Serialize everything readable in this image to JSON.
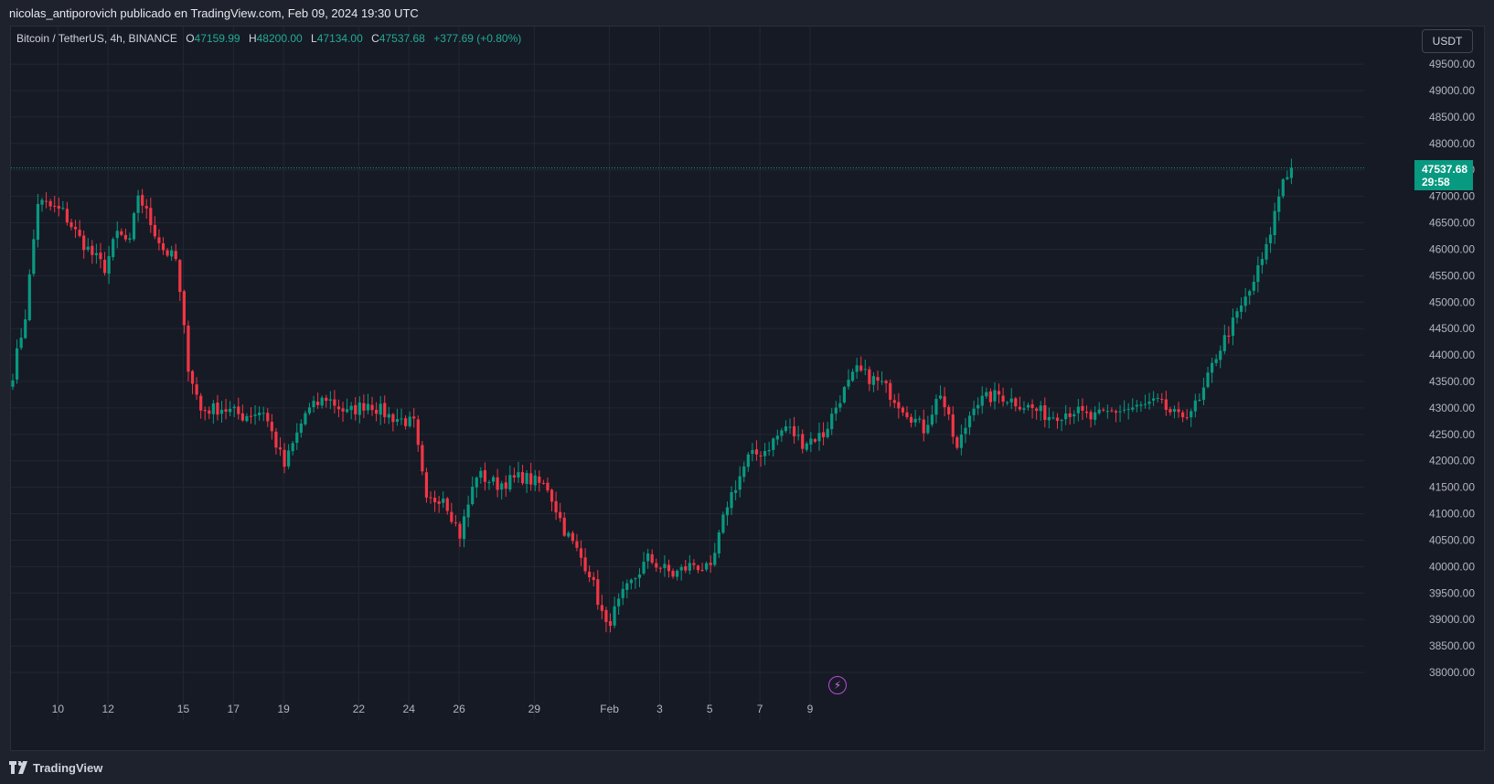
{
  "header": {
    "attribution": "nicolas_antiporovich publicado en TradingView.com, Feb 09, 2024 19:30 UTC"
  },
  "legend": {
    "symbol": "Bitcoin / TetherUS, 4h, BINANCE",
    "o_label": "O",
    "o_value": "47159.99",
    "h_label": "H",
    "h_value": "48200.00",
    "l_label": "L",
    "l_value": "47134.00",
    "c_label": "C",
    "c_value": "47537.68",
    "change": "+377.69 (+0.80%)"
  },
  "price_scale": {
    "currency": "USDT"
  },
  "last_price": {
    "price": "47537.68",
    "countdown": "29:58"
  },
  "footer": {
    "brand": "TradingView"
  },
  "colors": {
    "up": "#089981",
    "down": "#f23645",
    "background": "#161a25",
    "grid": "#232733",
    "bolt": "#b84bd6"
  },
  "icons": {
    "alert": "lightning-bolt-icon",
    "logo": "tradingview-logo-icon"
  },
  "chart_data": {
    "type": "candlestick",
    "interval": "4h",
    "ylim": [
      37500,
      50000
    ],
    "y_ticks": [
      38000,
      38500,
      39000,
      39500,
      40000,
      40500,
      41000,
      41500,
      42000,
      42500,
      43000,
      43500,
      44000,
      44500,
      45000,
      45500,
      46000,
      46500,
      47000,
      47500,
      48000,
      48500,
      49000,
      49500
    ],
    "x_ticks": [
      {
        "label": "10",
        "day": 10
      },
      {
        "label": "12",
        "day": 12
      },
      {
        "label": "15",
        "day": 15
      },
      {
        "label": "17",
        "day": 17
      },
      {
        "label": "19",
        "day": 19
      },
      {
        "label": "22",
        "day": 22
      },
      {
        "label": "24",
        "day": 24
      },
      {
        "label": "26",
        "day": 26
      },
      {
        "label": "29",
        "day": 29
      },
      {
        "label": "Feb",
        "day": 32
      },
      {
        "label": "3",
        "day": 34
      },
      {
        "label": "5",
        "day": 36
      },
      {
        "label": "7",
        "day": 38
      },
      {
        "label": "9",
        "day": 40
      }
    ],
    "x_start_day": 8.2,
    "last_price": 47537.68,
    "anchors": [
      [
        0,
        43650
      ],
      [
        3,
        44750
      ],
      [
        6,
        46900
      ],
      [
        12,
        46700
      ],
      [
        16,
        46200
      ],
      [
        19,
        45900
      ],
      [
        22,
        45650
      ],
      [
        25,
        46300
      ],
      [
        28,
        46100
      ],
      [
        30,
        47050
      ],
      [
        33,
        46500
      ],
      [
        36,
        46000
      ],
      [
        39,
        45800
      ],
      [
        42,
        43800
      ],
      [
        45,
        42950
      ],
      [
        50,
        43000
      ],
      [
        55,
        42850
      ],
      [
        60,
        42950
      ],
      [
        65,
        41900
      ],
      [
        70,
        42900
      ],
      [
        75,
        43200
      ],
      [
        80,
        42900
      ],
      [
        85,
        43100
      ],
      [
        90,
        42850
      ],
      [
        96,
        42700
      ],
      [
        99,
        41200
      ],
      [
        103,
        41350
      ],
      [
        107,
        40600
      ],
      [
        111,
        41750
      ],
      [
        116,
        41550
      ],
      [
        122,
        41700
      ],
      [
        128,
        41500
      ],
      [
        132,
        40700
      ],
      [
        138,
        39900
      ],
      [
        142,
        38850
      ],
      [
        146,
        39450
      ],
      [
        152,
        40150
      ],
      [
        158,
        39850
      ],
      [
        163,
        40050
      ],
      [
        167,
        39900
      ],
      [
        171,
        41200
      ],
      [
        176,
        42050
      ],
      [
        180,
        42200
      ],
      [
        185,
        42650
      ],
      [
        189,
        42350
      ],
      [
        194,
        42500
      ],
      [
        198,
        43200
      ],
      [
        202,
        43700
      ],
      [
        208,
        43450
      ],
      [
        212,
        43100
      ],
      [
        218,
        42600
      ],
      [
        222,
        43300
      ],
      [
        226,
        42200
      ],
      [
        230,
        43100
      ],
      [
        236,
        43250
      ],
      [
        242,
        43050
      ],
      [
        248,
        42850
      ],
      [
        254,
        42950
      ],
      [
        258,
        42800
      ],
      [
        264,
        42950
      ],
      [
        269,
        43000
      ],
      [
        274,
        43100
      ],
      [
        279,
        42800
      ],
      [
        284,
        43100
      ],
      [
        288,
        44000
      ],
      [
        292,
        44600
      ],
      [
        296,
        45200
      ],
      [
        300,
        46000
      ],
      [
        304,
        47350
      ],
      [
        306,
        47537.68
      ]
    ]
  }
}
